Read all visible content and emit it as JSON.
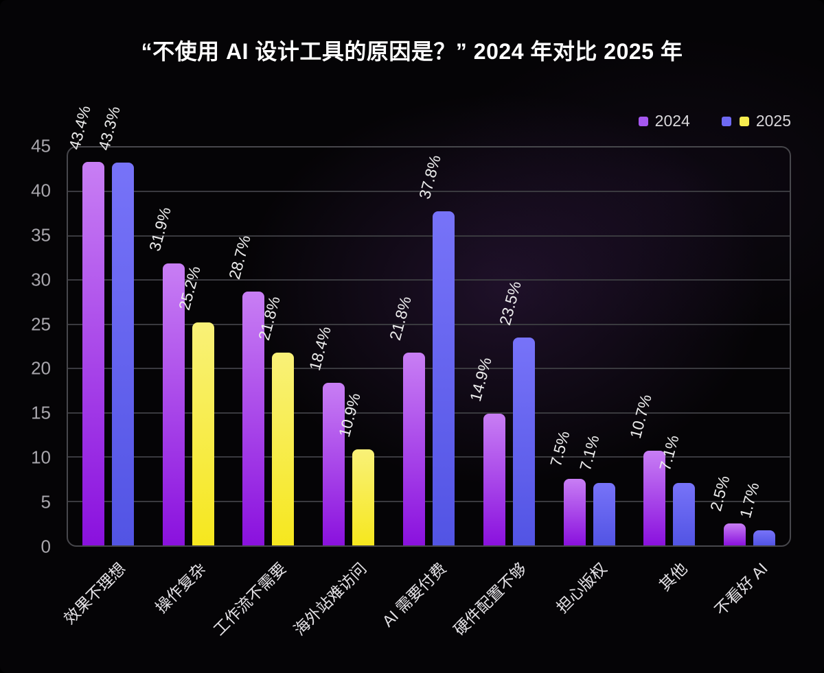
{
  "title": "“不使用 AI 设计工具的原因是？” 2024 年对比 2025 年",
  "legend": {
    "items": [
      {
        "label": "2024",
        "swatch_colors": [
          "#a557ef"
        ]
      },
      {
        "label": "2025",
        "swatch_colors": [
          "#6e69f3",
          "#f7ec4f"
        ]
      }
    ]
  },
  "chart_data": {
    "type": "bar",
    "title": "“不使用 AI 设计工具的原因是？” 2024 年对比 2025 年",
    "categories": [
      "效果不理想",
      "操作复杂",
      "工作流不需要",
      "海外站难访问",
      "AI 需要付费",
      "硬件配置不够",
      "担心版权",
      "其他",
      "不看好 AI"
    ],
    "series": [
      {
        "name": "2024",
        "values": [
          43.4,
          31.9,
          28.7,
          18.4,
          21.8,
          14.9,
          7.5,
          10.7,
          2.5
        ],
        "labels": [
          "43.4%",
          "31.9%",
          "28.7%",
          "18.4%",
          "21.8%",
          "14.9%",
          "7.5%",
          "10.7%",
          "2.5%"
        ]
      },
      {
        "name": "2025",
        "values": [
          43.3,
          25.2,
          21.8,
          10.9,
          37.8,
          23.5,
          7.1,
          7.1,
          1.7
        ],
        "labels": [
          "43.3%",
          "25.2%",
          "21.8%",
          "10.9%",
          "37.8%",
          "23.5%",
          "7.1%",
          "7.1%",
          "1.7%"
        ]
      }
    ],
    "colors_2025_by_category": [
      "blue",
      "yellow",
      "yellow",
      "yellow",
      "blue",
      "blue",
      "blue",
      "blue",
      "blue"
    ],
    "ylim": [
      0,
      45
    ],
    "yticks": [
      0,
      5,
      10,
      15,
      20,
      25,
      30,
      35,
      40,
      45
    ],
    "grid": true,
    "legend_position": "top-right",
    "value_label_rotation_deg": -75,
    "x_label_rotation_deg": -45,
    "colors": {
      "purple_top": "#c87ef4",
      "purple_bottom": "#8a11de",
      "blue_top": "#7773f8",
      "blue_bottom": "#5254e4",
      "yellow_top": "#f9f178",
      "yellow_bottom": "#f6e71e",
      "legend_purple": "#a557ef",
      "legend_blue": "#6e69f3",
      "legend_yellow": "#f7ec4f",
      "background": "#050406",
      "gridline": "#3a3a3f",
      "frame": "#47474c"
    }
  }
}
